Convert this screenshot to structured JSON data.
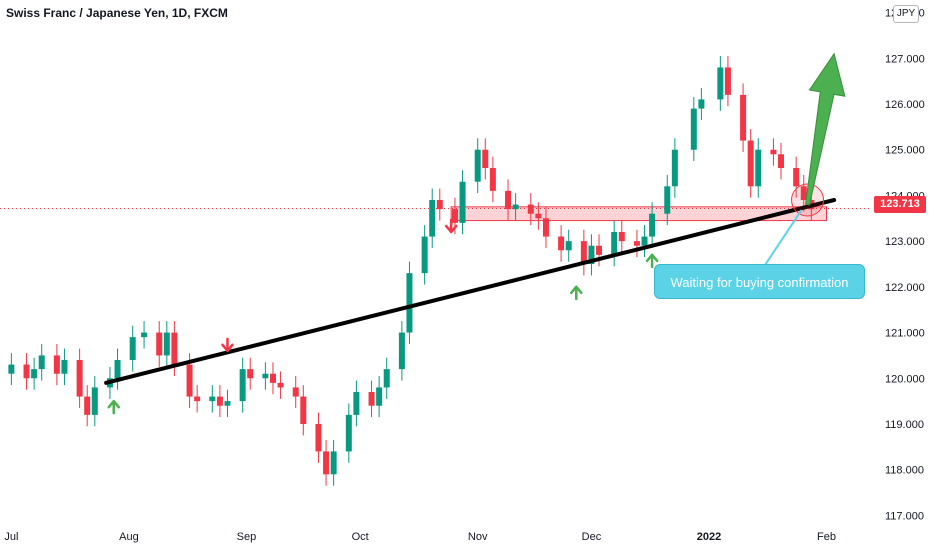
{
  "title": "Swiss Franc / Japanese Yen, 1D, FXCM",
  "currency_badge": "JPY",
  "last_price_label": "123.713",
  "callout_text": "Waiting for buying confirmation",
  "colors": {
    "up": "#089981",
    "down": "#f23645",
    "trendline": "#000000",
    "zone": "#f23645",
    "target_arrow": "#4caf50",
    "callout": "#5cd2e6",
    "signal_up": "#4caf50",
    "signal_down": "#f23645"
  },
  "chart_data": {
    "type": "candlestick",
    "title": "Swiss Franc / Japanese Yen, 1D, FXCM",
    "x_ticks": [
      "Jul",
      "Aug",
      "Sep",
      "Oct",
      "Nov",
      "Dec",
      "2022",
      "Feb"
    ],
    "y_ticks": [
      "117.000",
      "118.000",
      "119.000",
      "120.000",
      "121.000",
      "122.000",
      "123.000",
      "124.000",
      "125.000",
      "126.000",
      "127.000",
      "128.000"
    ],
    "ylim": [
      116.9,
      128.1
    ],
    "last_price": 123.713,
    "ohlc_closes": [
      {
        "date": "2021-07-01",
        "close": 120.3
      },
      {
        "date": "2021-07-05",
        "close": 120.0
      },
      {
        "date": "2021-07-07",
        "close": 120.2
      },
      {
        "date": "2021-07-09",
        "close": 120.5
      },
      {
        "date": "2021-07-13",
        "close": 120.1
      },
      {
        "date": "2021-07-15",
        "close": 120.4
      },
      {
        "date": "2021-07-19",
        "close": 119.6
      },
      {
        "date": "2021-07-21",
        "close": 119.2
      },
      {
        "date": "2021-07-23",
        "close": 119.8
      },
      {
        "date": "2021-07-27",
        "close": 120.0
      },
      {
        "date": "2021-07-29",
        "close": 120.4
      },
      {
        "date": "2021-08-02",
        "close": 120.9
      },
      {
        "date": "2021-08-05",
        "close": 121.0
      },
      {
        "date": "2021-08-09",
        "close": 120.5
      },
      {
        "date": "2021-08-11",
        "close": 121.0
      },
      {
        "date": "2021-08-13",
        "close": 120.3
      },
      {
        "date": "2021-08-17",
        "close": 119.6
      },
      {
        "date": "2021-08-19",
        "close": 119.5
      },
      {
        "date": "2021-08-23",
        "close": 119.6
      },
      {
        "date": "2021-08-25",
        "close": 119.4
      },
      {
        "date": "2021-08-27",
        "close": 119.5
      },
      {
        "date": "2021-08-31",
        "close": 120.2
      },
      {
        "date": "2021-09-02",
        "close": 120.0
      },
      {
        "date": "2021-09-06",
        "close": 120.1
      },
      {
        "date": "2021-09-08",
        "close": 119.9
      },
      {
        "date": "2021-09-10",
        "close": 119.8
      },
      {
        "date": "2021-09-14",
        "close": 119.6
      },
      {
        "date": "2021-09-16",
        "close": 119.0
      },
      {
        "date": "2021-09-20",
        "close": 118.4
      },
      {
        "date": "2021-09-22",
        "close": 117.9
      },
      {
        "date": "2021-09-24",
        "close": 118.4
      },
      {
        "date": "2021-09-28",
        "close": 119.2
      },
      {
        "date": "2021-09-30",
        "close": 119.7
      },
      {
        "date": "2021-10-04",
        "close": 119.4
      },
      {
        "date": "2021-10-06",
        "close": 119.8
      },
      {
        "date": "2021-10-08",
        "close": 120.2
      },
      {
        "date": "2021-10-12",
        "close": 121.0
      },
      {
        "date": "2021-10-14",
        "close": 122.3
      },
      {
        "date": "2021-10-18",
        "close": 123.1
      },
      {
        "date": "2021-10-20",
        "close": 123.9
      },
      {
        "date": "2021-10-22",
        "close": 123.7
      },
      {
        "date": "2021-10-26",
        "close": 123.4
      },
      {
        "date": "2021-10-28",
        "close": 124.3
      },
      {
        "date": "2021-11-01",
        "close": 125.0
      },
      {
        "date": "2021-11-03",
        "close": 124.6
      },
      {
        "date": "2021-11-05",
        "close": 124.1
      },
      {
        "date": "2021-11-09",
        "close": 123.7
      },
      {
        "date": "2021-11-11",
        "close": 123.8
      },
      {
        "date": "2021-11-15",
        "close": 123.6
      },
      {
        "date": "2021-11-17",
        "close": 123.5
      },
      {
        "date": "2021-11-19",
        "close": 123.1
      },
      {
        "date": "2021-11-23",
        "close": 122.8
      },
      {
        "date": "2021-11-25",
        "close": 123.0
      },
      {
        "date": "2021-11-29",
        "close": 122.5
      },
      {
        "date": "2021-12-01",
        "close": 122.9
      },
      {
        "date": "2021-12-03",
        "close": 122.7
      },
      {
        "date": "2021-12-07",
        "close": 123.2
      },
      {
        "date": "2021-12-09",
        "close": 123.0
      },
      {
        "date": "2021-12-13",
        "close": 122.9
      },
      {
        "date": "2021-12-15",
        "close": 123.1
      },
      {
        "date": "2021-12-17",
        "close": 123.6
      },
      {
        "date": "2021-12-21",
        "close": 124.2
      },
      {
        "date": "2021-12-23",
        "close": 125.0
      },
      {
        "date": "2021-12-28",
        "close": 125.9
      },
      {
        "date": "2021-12-30",
        "close": 126.1
      },
      {
        "date": "2022-01-04",
        "close": 126.8
      },
      {
        "date": "2022-01-06",
        "close": 126.2
      },
      {
        "date": "2022-01-10",
        "close": 125.2
      },
      {
        "date": "2022-01-12",
        "close": 124.2
      },
      {
        "date": "2022-01-14",
        "close": 125.0
      },
      {
        "date": "2022-01-18",
        "close": 124.9
      },
      {
        "date": "2022-01-20",
        "close": 124.6
      },
      {
        "date": "2022-01-24",
        "close": 124.2
      },
      {
        "date": "2022-01-26",
        "close": 123.9
      },
      {
        "date": "2022-01-28",
        "close": 123.7
      }
    ],
    "annotations": {
      "trendline": {
        "from": {
          "date": "2021-07-26",
          "price": 119.9
        },
        "to": {
          "date": "2022-02-03",
          "price": 123.9
        }
      },
      "resistance_support_zone": {
        "from_date": "2021-10-25",
        "to_date": "2022-02-01",
        "low": 123.45,
        "high": 123.75
      },
      "target_arrow": {
        "from": {
          "date": "2022-01-27",
          "price": 123.8
        },
        "to": {
          "date": "2022-02-03",
          "price": 127.1
        }
      },
      "circle_highlight": {
        "date": "2022-01-27",
        "price": 123.9
      },
      "signal_arrows": [
        {
          "date": "2021-07-28",
          "direction": "up"
        },
        {
          "date": "2021-08-27",
          "direction": "down"
        },
        {
          "date": "2021-10-25",
          "direction": "down"
        },
        {
          "date": "2021-11-27",
          "direction": "up"
        },
        {
          "date": "2021-12-17",
          "direction": "up"
        }
      ]
    }
  }
}
